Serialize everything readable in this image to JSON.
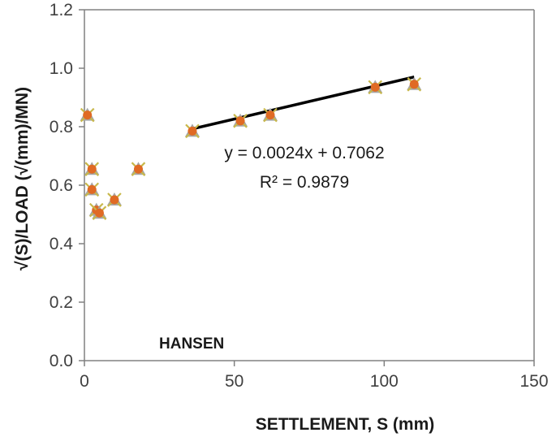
{
  "chart_data": {
    "type": "scatter",
    "xlabel": "SETTLEMENT, S  (mm)",
    "ylabel": "√(S)/LOAD  (√(mm)/MN)",
    "xlim": [
      0,
      150
    ],
    "ylim": [
      0,
      1.2
    ],
    "x_ticks": [
      "0",
      "50",
      "100",
      "150"
    ],
    "y_ticks": [
      "0.0",
      "0.2",
      "0.4",
      "0.6",
      "0.8",
      "1.0",
      "1.2"
    ],
    "grid": false,
    "legend": "none",
    "series": [
      {
        "points": [
          {
            "x": 1,
            "y": 0.84
          },
          {
            "x": 2.5,
            "y": 0.655
          },
          {
            "x": 2.5,
            "y": 0.585
          },
          {
            "x": 4,
            "y": 0.515
          },
          {
            "x": 5,
            "y": 0.505
          },
          {
            "x": 10,
            "y": 0.55
          },
          {
            "x": 18,
            "y": 0.655
          },
          {
            "x": 36,
            "y": 0.785
          },
          {
            "x": 52,
            "y": 0.82
          },
          {
            "x": 62,
            "y": 0.84
          },
          {
            "x": 97,
            "y": 0.935
          },
          {
            "x": 110,
            "y": 0.945
          }
        ]
      }
    ],
    "trendline": {
      "x_start": 36,
      "x_end": 110,
      "slope": 0.0024,
      "intercept": 0.7062,
      "equation": "y = 0.0024x + 0.7062",
      "r_squared": "R² = 0.9879"
    },
    "annotation": "HANSEN",
    "colors": {
      "marker_fill": "#e06a24",
      "marker_outer": "#a6a6a6",
      "marker_cross": "#c8b84a",
      "trendline": "#000000",
      "axis": "#808080"
    }
  }
}
